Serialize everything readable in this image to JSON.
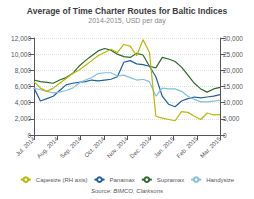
{
  "chart_data": {
    "type": "line",
    "title": "Average of Time Charter Routes for Baltic Indices",
    "subtitle": "2014-2015, USD per day",
    "annotations": [
      "Source: BIMCO, Clarksons"
    ],
    "x": [
      0,
      0.275862,
      0.551724,
      0.827586,
      1.103448,
      1.37931,
      1.655172,
      1.931034,
      2.206897,
      2.482759,
      2.758621,
      3.034483,
      3.310345,
      3.586207,
      3.862069,
      4.137931,
      4.413793,
      4.689655,
      4.965517,
      5.241379,
      5.517241,
      5.793103,
      6.068966,
      6.344828,
      6.62069,
      6.896552,
      7.172414,
      7.448276,
      7.724138,
      8
    ],
    "xlim": [
      0,
      8
    ],
    "xticks": [
      {
        "value": 0,
        "label": "Jul. 2014"
      },
      {
        "value": 1,
        "label": "Aug. 2014"
      },
      {
        "value": 2,
        "label": "Sep. 2014"
      },
      {
        "value": 3,
        "label": "Oct. 2014"
      },
      {
        "value": 4,
        "label": "Nov. 2014"
      },
      {
        "value": 5,
        "label": "Dec. 2014"
      },
      {
        "value": 6,
        "label": "Jan. 2015"
      },
      {
        "value": 7,
        "label": "Feb. 2015"
      },
      {
        "value": 8,
        "label": "Mar. 2015"
      }
    ],
    "ylim": [
      0,
      12000
    ],
    "yticks": [
      0,
      {
        "value": 2000,
        "label": "2,000"
      },
      {
        "value": 4000,
        "label": "4,000"
      },
      {
        "value": 6000,
        "label": "6,000"
      },
      {
        "value": 8000,
        "label": "8,000"
      },
      {
        "value": 10000,
        "label": "10,000"
      },
      {
        "value": 12000,
        "label": "12,000"
      }
    ],
    "y2lim": [
      0,
      30000
    ],
    "y2ticks": [
      0,
      {
        "value": 5000,
        "label": "5,000"
      },
      {
        "value": 10000,
        "label": "10,000"
      },
      {
        "value": 15000,
        "label": "15,000"
      },
      {
        "value": 20000,
        "label": "20,000"
      },
      {
        "value": 25000,
        "label": "25,000"
      },
      {
        "value": 30000,
        "label": "30,000"
      }
    ],
    "grid": true,
    "legend": "bottom",
    "series": [
      {
        "name": "Capesize (RH axis)",
        "color": "#b8b800",
        "axis": "y2",
        "values": [
          16500,
          14500,
          13500,
          14500,
          16000,
          17500,
          19000,
          20000,
          21500,
          23000,
          24500,
          25500,
          26500,
          25500,
          28000,
          27500,
          24500,
          29500,
          25500,
          5800,
          5200,
          4800,
          4400,
          7200,
          7000,
          5800,
          4800,
          6800,
          6200,
          6300
        ]
      },
      {
        "name": "Panamax",
        "color": "#2060a0",
        "values": [
          5800,
          4200,
          4500,
          4800,
          5500,
          6200,
          6400,
          6500,
          6600,
          6800,
          6700,
          6800,
          6900,
          7200,
          9000,
          9200,
          8800,
          8700,
          8500,
          7200,
          4800,
          3800,
          3500,
          4200,
          4500,
          4700,
          4600,
          4700,
          4800,
          5000
        ]
      },
      {
        "name": "Supramax",
        "color": "#2d6a2d",
        "values": [
          6800,
          6600,
          6500,
          6400,
          6800,
          7100,
          7600,
          8500,
          9200,
          9800,
          10400,
          10700,
          10500,
          10000,
          9700,
          9600,
          10100,
          9900,
          8500,
          8300,
          9600,
          9400,
          9100,
          8400,
          7400,
          6400,
          5700,
          5300,
          5700,
          5900
        ]
      },
      {
        "name": "Handysize",
        "color": "#80c0e0",
        "values": [
          5800,
          5600,
          5400,
          5200,
          5300,
          5500,
          5800,
          6400,
          6800,
          7100,
          7600,
          7700,
          7700,
          7300,
          7400,
          7100,
          6800,
          6900,
          6600,
          4800,
          5800,
          5700,
          5700,
          5400,
          4800,
          4400,
          4100,
          4100,
          4200,
          4300
        ]
      }
    ]
  }
}
